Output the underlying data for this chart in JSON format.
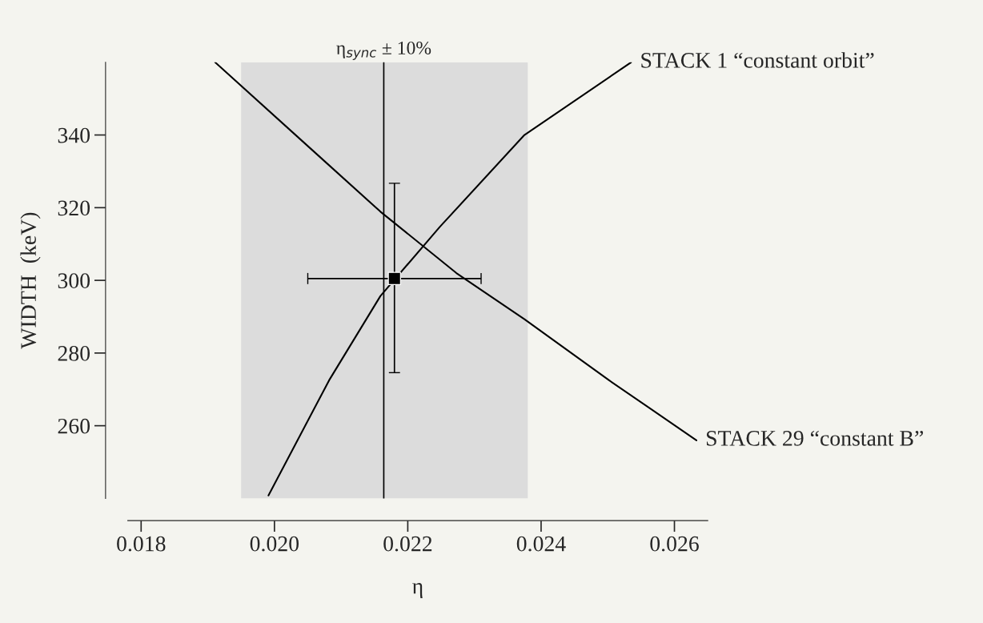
{
  "chart_data": {
    "type": "line",
    "xlabel": "η",
    "ylabel": "WIDTH  (keV)",
    "series": [
      {
        "name": "STACK 1 “constant orbit”",
        "color": "#000000",
        "x": [
          0.01991,
          0.02082,
          0.02159,
          0.02248,
          0.02375,
          0.02535
        ],
        "values": [
          240.8,
          272.5,
          295.7,
          314.7,
          340,
          360
        ]
      },
      {
        "name": "STACK 29 “constant B”",
        "color": "#000000",
        "x": [
          0.01911,
          0.02057,
          0.02159,
          0.02273,
          0.02375,
          0.02502,
          0.02633
        ],
        "values": [
          360,
          335.8,
          318.9,
          302.0,
          289.3,
          272.5,
          256.0
        ]
      },
      {
        "type": "scatter",
        "marker": "square",
        "color": "#000000",
        "x": [
          0.0218
        ],
        "values": [
          300.5
        ],
        "errors": [
          [
            274.6,
            326.7
          ]
        ],
        "xerrors": [
          [
            0.0205,
            0.0231
          ]
        ]
      }
    ],
    "ref_lines": [
      {
        "axis": "x",
        "value": 0.02164,
        "label": "η$_{sync}$ ± 10%",
        "color": "#000000"
      }
    ],
    "bands": [
      {
        "axis": "x",
        "from": 0.0195,
        "to": 0.0238,
        "color": "#dcdcdc"
      }
    ],
    "xlim": [
      0.0178,
      0.0265
    ],
    "ylim": [
      240,
      360
    ],
    "xticks": [
      {
        "value": 0.018,
        "label": "0.018"
      },
      {
        "value": 0.02,
        "label": "0.020"
      },
      {
        "value": 0.022,
        "label": "0.022"
      },
      {
        "value": 0.024,
        "label": "0.024"
      },
      {
        "value": 0.026,
        "label": "0.026"
      }
    ],
    "yticks": [
      260,
      280,
      300,
      320,
      340
    ],
    "grid": false,
    "legend": false
  }
}
